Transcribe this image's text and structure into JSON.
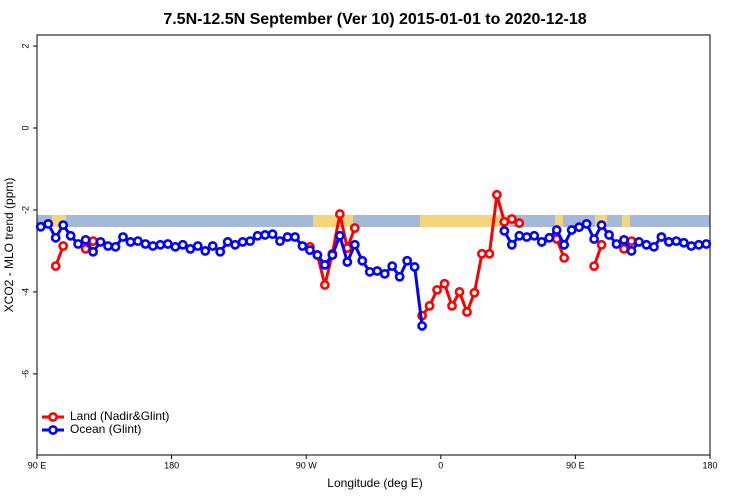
{
  "chart_data": {
    "type": "line",
    "title": "7.5N-12.5N September (Ver 10)   2015-01-01 to 2020-12-18",
    "x_label": "Longitude (deg E)",
    "y_label": "XCO2 - MLO trend (ppm)",
    "x": [
      92.5,
      97.5,
      102.5,
      107.5,
      112.5,
      117.5,
      122.5,
      127.5,
      132.5,
      137.5,
      142.5,
      147.5,
      152.5,
      157.5,
      162.5,
      167.5,
      172.5,
      177.5,
      182.5,
      187.5,
      192.5,
      197.5,
      202.5,
      207.5,
      212.5,
      217.5,
      222.5,
      227.5,
      232.5,
      237.5,
      242.5,
      247.5,
      252.5,
      257.5,
      262.5,
      267.5,
      272.5,
      277.5,
      282.5,
      287.5,
      292.5,
      297.5,
      302.5,
      307.5,
      312.5,
      317.5,
      322.5,
      327.5,
      332.5,
      337.5,
      342.5,
      347.5,
      352.5,
      357.5,
      362.5,
      367.5,
      372.5,
      377.5,
      382.5,
      387.5,
      392.5,
      397.5,
      402.5,
      407.5,
      412.5,
      417.5,
      422.5,
      427.5,
      432.5,
      437.5,
      442.5,
      447.5,
      452.5,
      457.5,
      462.5,
      467.5,
      472.5,
      477.5,
      482.5,
      487.5,
      492.5,
      497.5,
      502.5,
      507.5,
      512.5,
      517.5,
      522.5,
      527.5,
      532.5,
      537.5
    ],
    "series": [
      {
        "name": "Land (Nadir&Glint)",
        "color": "#ff0000",
        "values": [
          null,
          null,
          -3.37,
          -2.88,
          null,
          null,
          -2.95,
          -2.76,
          null,
          null,
          null,
          null,
          null,
          null,
          null,
          null,
          null,
          null,
          null,
          null,
          null,
          null,
          null,
          null,
          null,
          null,
          null,
          null,
          null,
          null,
          null,
          null,
          null,
          null,
          null,
          null,
          -2.9,
          -3.1,
          -3.83,
          -3.07,
          -2.1,
          -2.93,
          -2.44,
          null,
          null,
          null,
          null,
          null,
          null,
          null,
          null,
          -4.58,
          -4.34,
          -3.95,
          -3.8,
          -4.34,
          -4.0,
          -4.49,
          -4.02,
          -3.07,
          -3.07,
          -1.63,
          -2.29,
          -2.22,
          -2.32,
          null,
          null,
          null,
          null,
          -2.71,
          -3.17,
          null,
          null,
          null,
          -3.37,
          -2.85,
          null,
          null,
          -2.95,
          -2.76,
          null,
          null,
          null,
          null,
          null,
          null,
          null,
          null,
          null,
          null
        ]
      },
      {
        "name": "Ocean (Glint)",
        "color": "#0000ff",
        "values": [
          -2.41,
          -2.34,
          -2.68,
          -2.37,
          -2.63,
          -2.83,
          -2.73,
          -3.02,
          -2.78,
          -2.88,
          -2.9,
          -2.66,
          -2.78,
          -2.76,
          -2.83,
          -2.88,
          -2.85,
          -2.83,
          -2.9,
          -2.85,
          -2.95,
          -2.88,
          -3.0,
          -2.88,
          -3.02,
          -2.78,
          -2.85,
          -2.78,
          -2.76,
          -2.63,
          -2.61,
          -2.59,
          -2.76,
          -2.66,
          -2.66,
          -2.88,
          -2.98,
          -3.1,
          -3.34,
          -3.1,
          -2.63,
          -3.27,
          -2.85,
          -3.24,
          -3.51,
          -3.49,
          -3.56,
          -3.37,
          -3.63,
          -3.24,
          -3.39,
          -4.83,
          null,
          null,
          null,
          null,
          null,
          null,
          null,
          null,
          null,
          null,
          -2.51,
          -2.85,
          -2.63,
          -2.66,
          -2.63,
          -2.78,
          -2.68,
          -2.49,
          -2.85,
          -2.49,
          -2.42,
          -2.34,
          -2.71,
          -2.37,
          -2.61,
          -2.83,
          -2.73,
          -3.0,
          -2.78,
          -2.85,
          -2.9,
          -2.66,
          -2.78,
          -2.76,
          -2.8,
          -2.88,
          -2.85,
          -2.83
        ]
      }
    ],
    "xlim": [
      90,
      540
    ],
    "xticks": [
      {
        "value": 90,
        "label": "90 E"
      },
      180,
      {
        "value": 270,
        "label": "90 W"
      },
      {
        "value": 360,
        "label": "0"
      },
      {
        "value": 450,
        "label": "90 E"
      },
      {
        "value": 540,
        "label": "180"
      }
    ],
    "ylim": [
      -7.98,
      2.27
    ],
    "yticks": [
      -6,
      -4,
      -2,
      0,
      2
    ],
    "legend": "bottomleft"
  }
}
